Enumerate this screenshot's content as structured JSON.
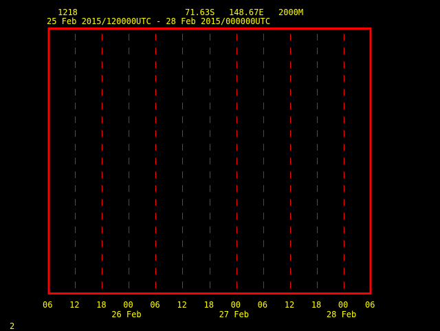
{
  "header": {
    "station": "1218",
    "latitude": "71.63S",
    "longitude": "148.67E",
    "height": "2000M",
    "period": "25 Feb 2015/120000UTC - 28 Feb 2015/000000UTC"
  },
  "footer": {
    "page_number": "2"
  },
  "colors": {
    "frame": "#ff0000",
    "gridlines": "#ff0000",
    "text": "#ffff00",
    "background": "#000000"
  },
  "chart_data": {
    "type": "line",
    "series": [],
    "x_ticks": [
      "06",
      "12",
      "18",
      "00",
      "06",
      "12",
      "18",
      "00",
      "06",
      "12",
      "18",
      "00",
      "06"
    ],
    "x_date_labels": [
      {
        "label": "26 Feb",
        "at_tick": 3
      },
      {
        "label": "27 Feb",
        "at_tick": 7
      },
      {
        "label": "28 Feb",
        "at_tick": 11
      }
    ],
    "xlim": [
      "25 Feb 2015 06UTC",
      "28 Feb 2015 06UTC"
    ],
    "grid": "vertical dashed every 6 hours",
    "title": ""
  }
}
